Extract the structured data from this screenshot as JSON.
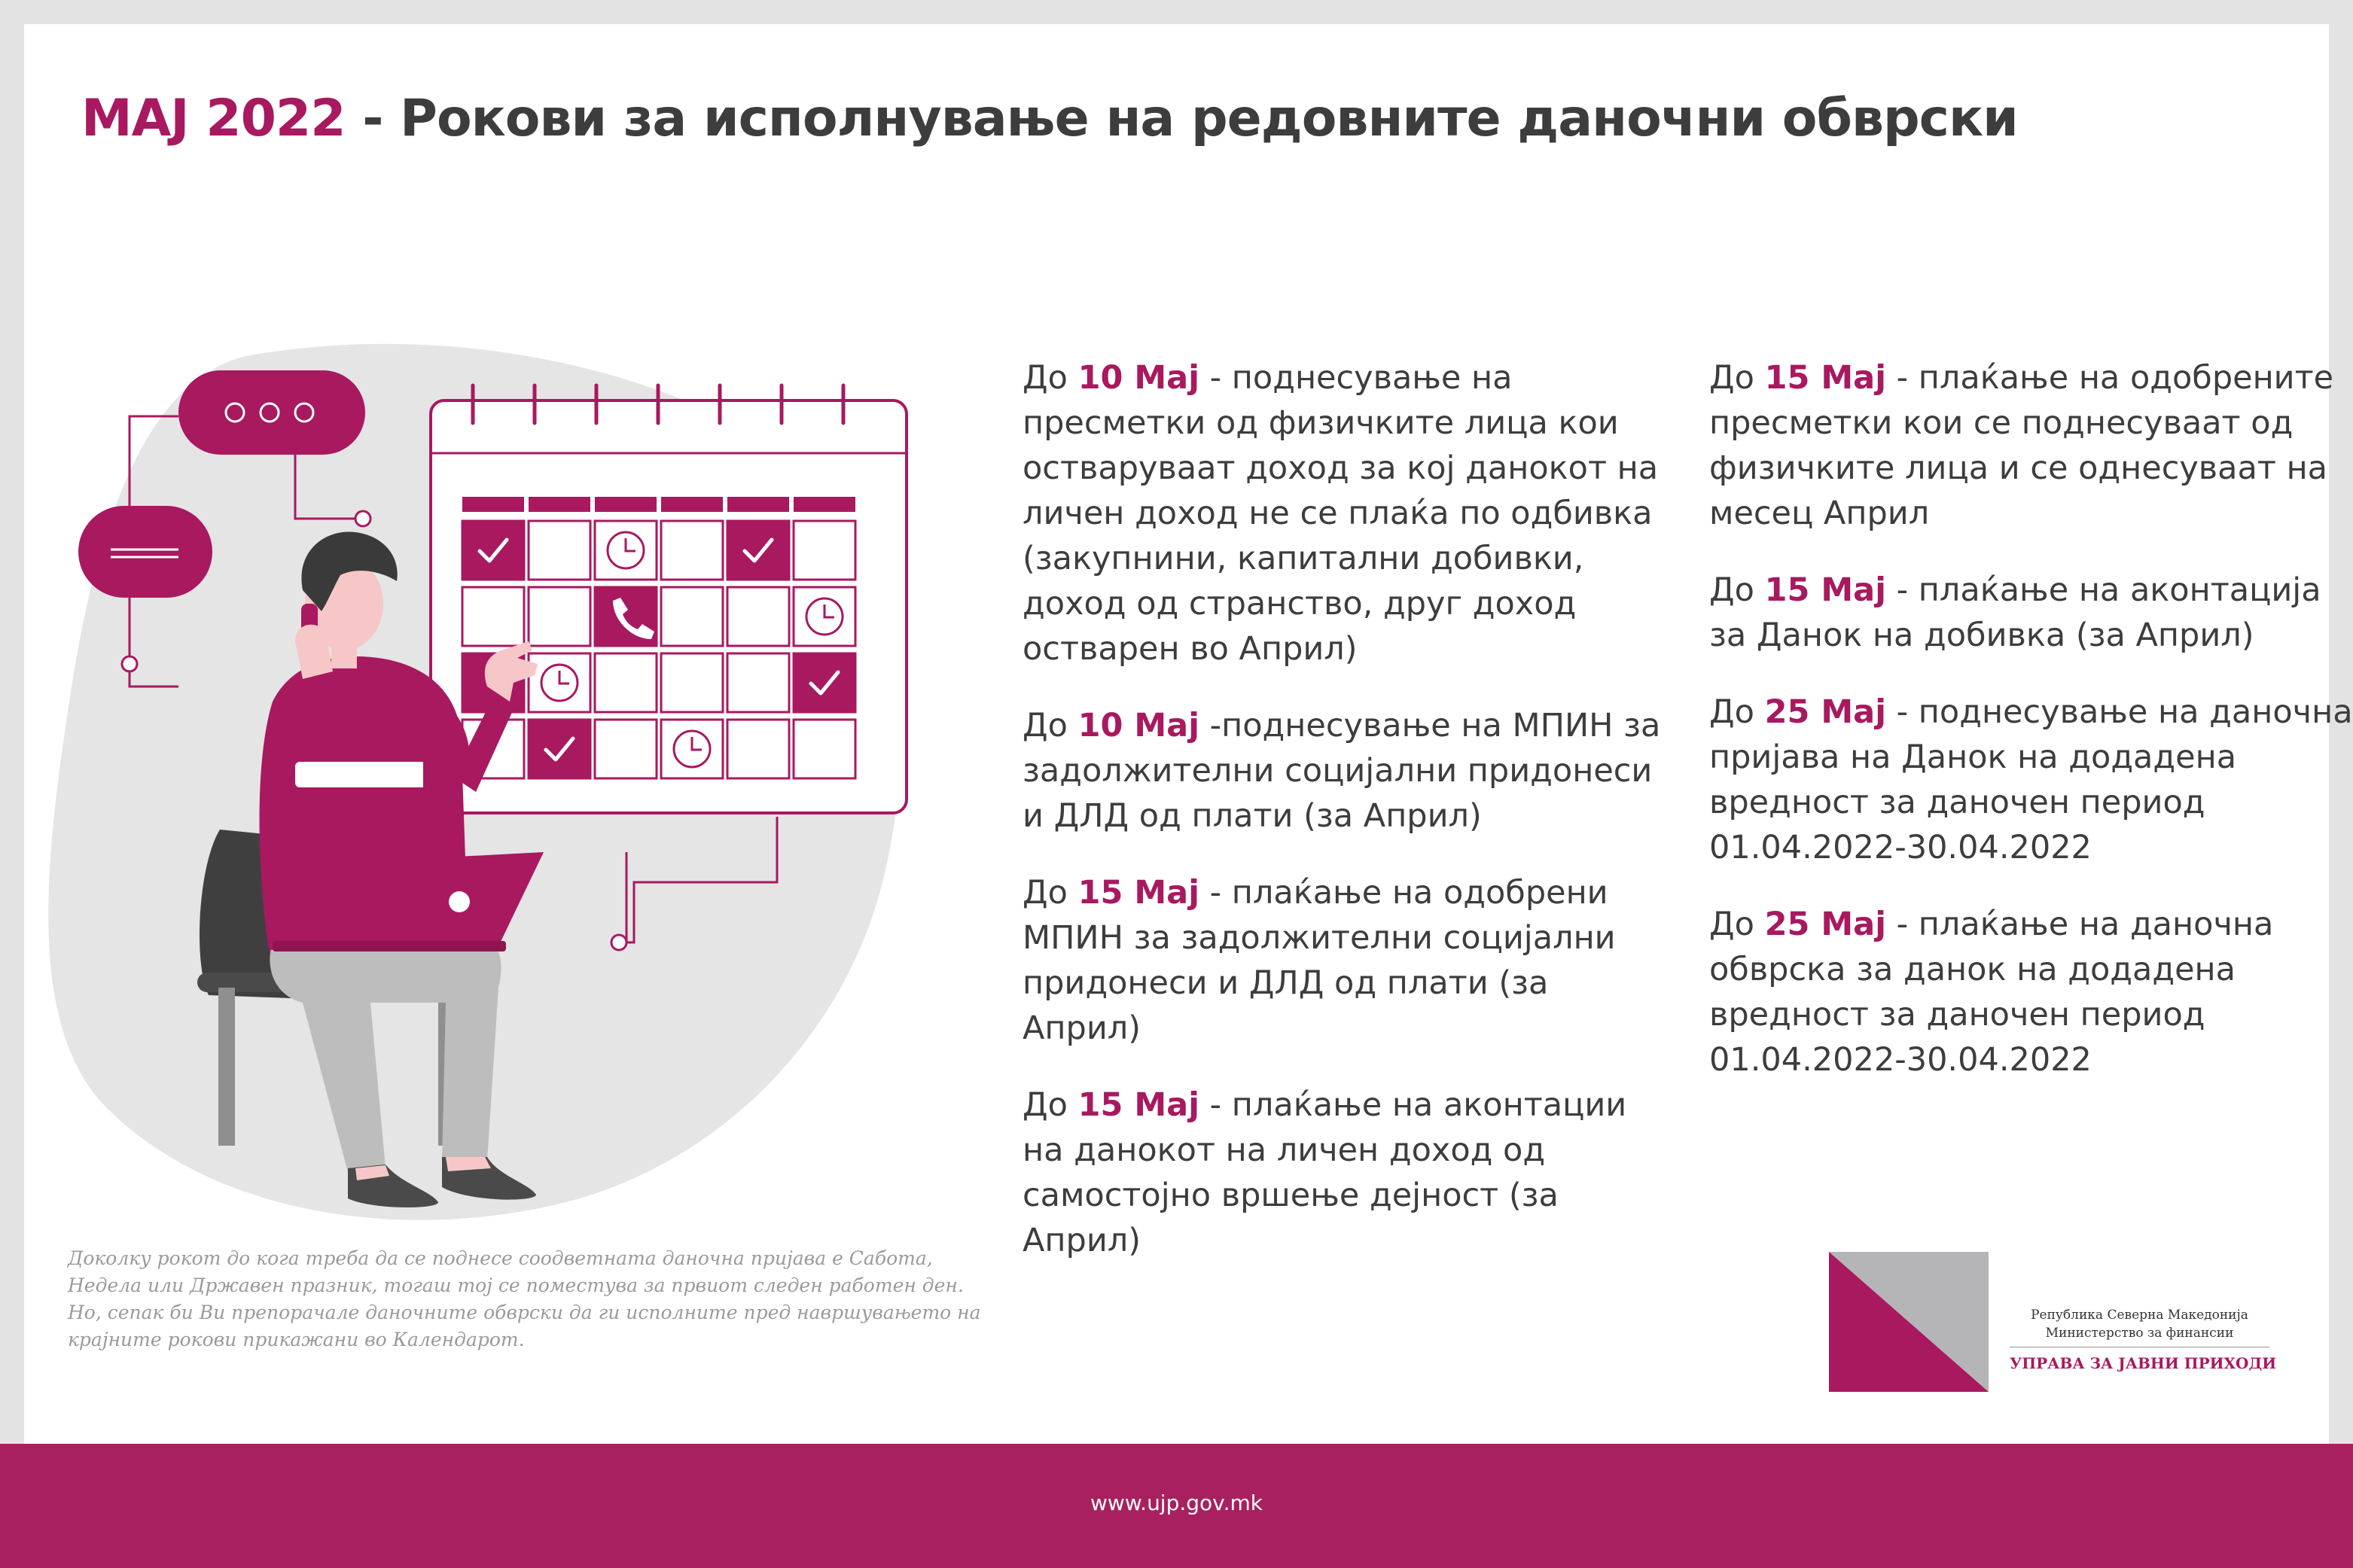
{
  "header": {
    "title_accent": "МАЈ 2022",
    "title_rest": " - Рокови за исполнување на редовните даночни обврски"
  },
  "deadlines": [
    {
      "prefix": "До ",
      "date": "10 Мај",
      "text": " - поднесување на пресметки од физичките лица кои остваруваат доход за кој данокот на личен доход не се плаќа по одбивка (закупнини, капитални добивки, доход од странство, друг доход остварен во Април)"
    },
    {
      "prefix": "До ",
      "date": "10 Мај",
      "text": " -поднесување на МПИН за задолжителни социјални придонеси и ДЛД од плати (за Април)"
    },
    {
      "prefix": "До ",
      "date": "15 Мај",
      "text": " - плаќање на одобрени МПИН за задолжителни социјални придонеси и ДЛД од плати (за Април)"
    },
    {
      "prefix": "До ",
      "date": "15 Мај",
      "text": " - плаќање на аконтации на данокот на личен доход од самостојно вршење дејност (за Април)"
    },
    {
      "prefix": "До ",
      "date": "15 Мај",
      "text": " - плаќање на одобрените пресметки кои се поднесуваат од физичките лица и се однесуваат на месец Април"
    },
    {
      "prefix": "До ",
      "date": "15 Мај",
      "text": " - плаќање на аконтација за Данок на добивка (за Април)"
    },
    {
      "prefix": "До ",
      "date": "25 Мај",
      "text": " - поднесување на даночна пријава на Данок на додадена вредност за даночен период 01.04.2022-30.04.2022"
    },
    {
      "prefix": "До ",
      "date": "25 Мај",
      "text": " - плаќање на даночна обврска за данок на додадена вредност за даночен период 01.04.2022-30.04.2022"
    }
  ],
  "footnote": "Доколку рокот до кога треба да се поднесе соодветната даночна пријава е Сабота, Недела или Државен празник, тогаш тој се поместува за првиот следен работен ден. Но, сепак би Ви препорачале даночните обврски да ги исполните пред навршувањето на крајните рокови прикажани во Календарот.",
  "logo": {
    "country": "Република Северна Македонија",
    "ministry": "Министерство за финансии",
    "agency": "УПРАВА ЗА ЈАВНИ ПРИХОДИ"
  },
  "footer": {
    "url": "www.ujp.gov.mk"
  },
  "colors": {
    "accent": "#a8195f",
    "text": "#3d3d3d",
    "footer": "#a8205f",
    "light_gray": "#e5e5e5"
  },
  "icons": [
    "speech-bubble-icon",
    "check-icon",
    "clock-icon",
    "phone-icon",
    "laptop-icon"
  ]
}
